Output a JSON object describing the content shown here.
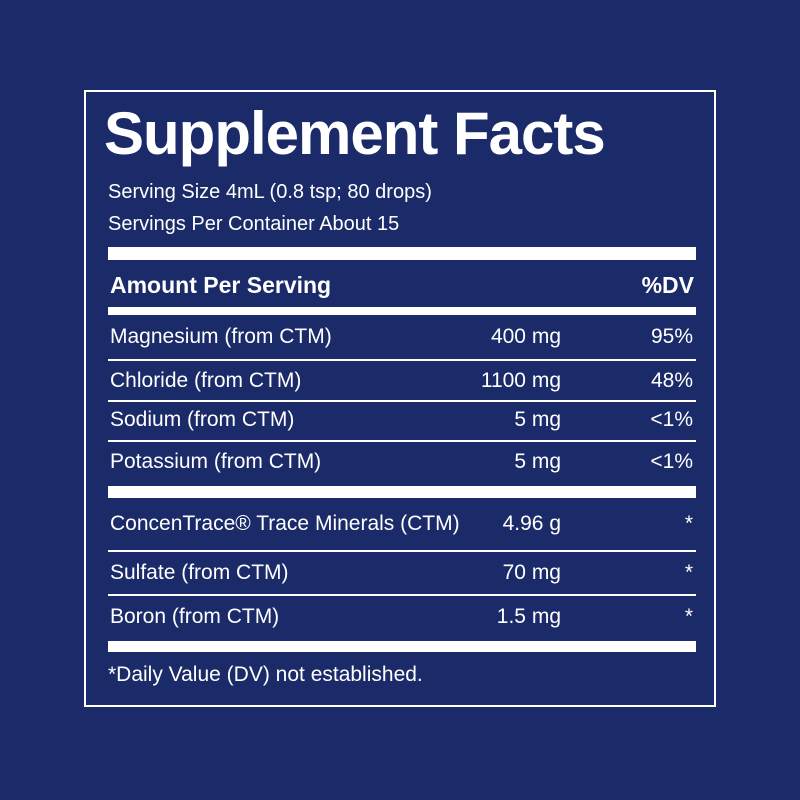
{
  "title": "Supplement Facts",
  "serving_size": "Serving Size 4mL (0.8 tsp; 80 drops)",
  "servings_per_container": "Servings Per Container About 15",
  "header": {
    "amount": "Amount Per Serving",
    "dv": "%DV"
  },
  "rows": [
    {
      "name": "Magnesium (from CTM)",
      "amount": "400 mg",
      "dv": "95%"
    },
    {
      "name": "Chloride (from CTM)",
      "amount": "1100 mg",
      "dv": "48%"
    },
    {
      "name": "Sodium (from CTM)",
      "amount": "5 mg",
      "dv": "<1%"
    },
    {
      "name": "Potassium (from CTM)",
      "amount": "5 mg",
      "dv": "<1%"
    },
    {
      "name": "ConcenTrace® Trace Minerals (CTM)",
      "amount": "4.96 g",
      "dv": "*"
    },
    {
      "name": "Sulfate (from CTM)",
      "amount": "70 mg",
      "dv": "*"
    },
    {
      "name": "Boron (from CTM)",
      "amount": "1.5 mg",
      "dv": "*"
    }
  ],
  "footnote": "*Daily Value (DV) not established."
}
